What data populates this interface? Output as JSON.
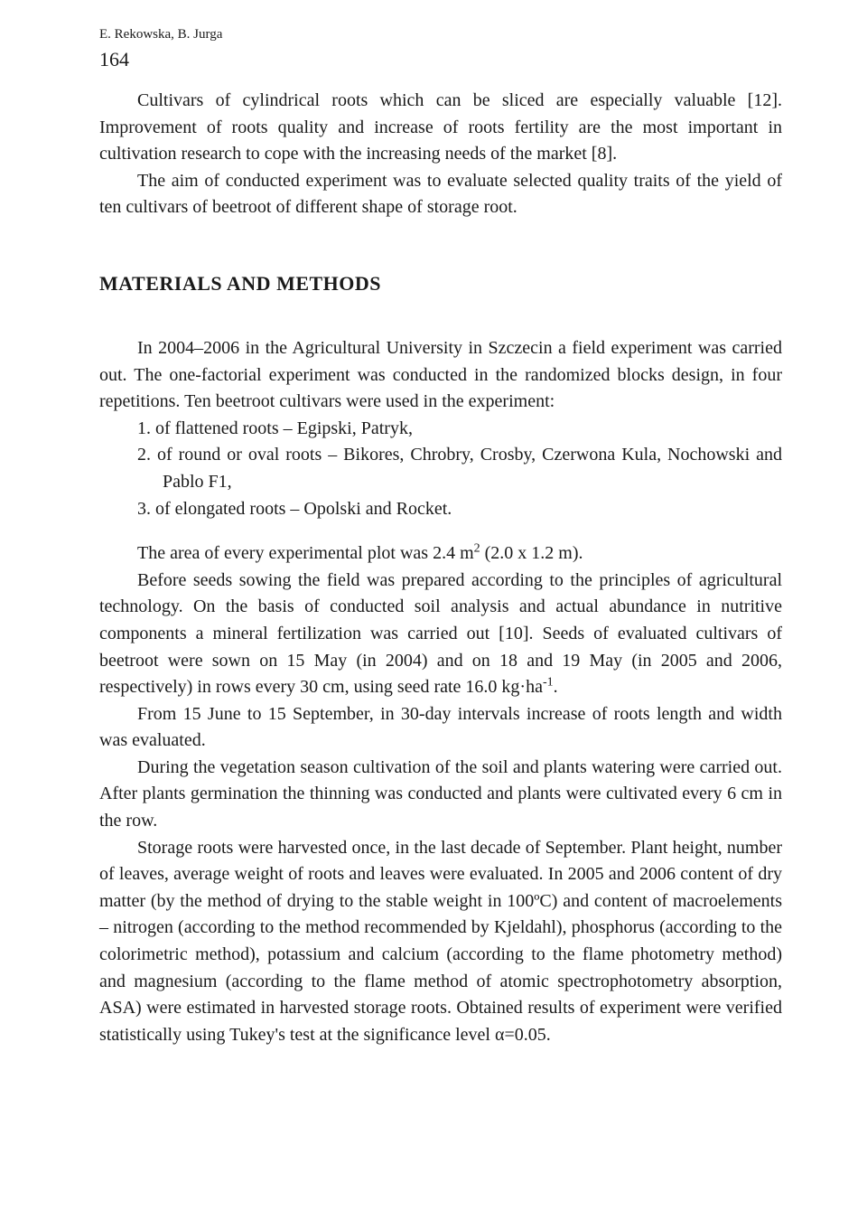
{
  "running_head": "E. Rekowska, B. Jurga",
  "page_number": "164",
  "intro": {
    "p1": "Cultivars of cylindrical roots which can be sliced are especially valuable [12]. Improvement of roots quality and increase of roots fertility are the most important in cultivation research to cope with the increasing needs of the market [8].",
    "p2": "The aim of conducted experiment was to evaluate selected quality traits of the yield of ten cultivars of beetroot of different shape of storage root."
  },
  "section_heading": "MATERIALS AND METHODS",
  "methods": {
    "p1": "In 2004–2006 in the Agricultural University in Szczecin a field experiment was carried out. The one-factorial experiment was conducted in the randomized blocks design, in four repetitions. Ten beetroot cultivars were used in the experiment:",
    "li1": "1. of flattened roots – Egipski, Patryk,",
    "li2": "2. of round or oval roots – Bikores, Chrobry, Crosby, Czerwona Kula, Nochowski and Pablo F1,",
    "li3": "3. of elongated roots – Opolski and Rocket.",
    "p2_pre": "The area of every experimental plot was 2.4 m",
    "p2_sup": "2",
    "p2_post": " (2.0 x 1.2 m).",
    "p3_pre": "Before seeds sowing the field was prepared according to the principles of agricultural technology. On the basis of conducted soil analysis and actual abundance in nutritive components a mineral fertilization was carried out [10]. Seeds of evaluated cultivars of beetroot were sown on 15 May (in 2004) and on 18 and 19 May (in 2005 and 2006, respectively) in rows every 30 cm, using seed rate 16.0 kg·ha",
    "p3_sup": "-1",
    "p3_post": ".",
    "p4": "From 15 June to 15 September, in 30-day intervals increase of roots length and width was evaluated.",
    "p5": "During the vegetation season cultivation of the soil and plants watering were carried out. After plants germination the thinning was conducted and plants were cultivated every 6 cm in the row.",
    "p6": "Storage roots were harvested once, in the last decade of September. Plant height, number of leaves, average weight of roots and leaves were evaluated. In 2005 and 2006 content of dry matter (by the method of drying to the stable weight in 100ºC) and content of macroelements – nitrogen (according to the method recommended by Kjeldahl), phosphorus (according to the colorimetric method), potassium and calcium (according to the flame photometry method) and magnesium (according to the flame method of atomic spectrophotometry absorption, ASA) were estimated in harvested storage roots. Obtained results of experiment were verified statistically using Tukey's test at the significance level α=0.05."
  }
}
